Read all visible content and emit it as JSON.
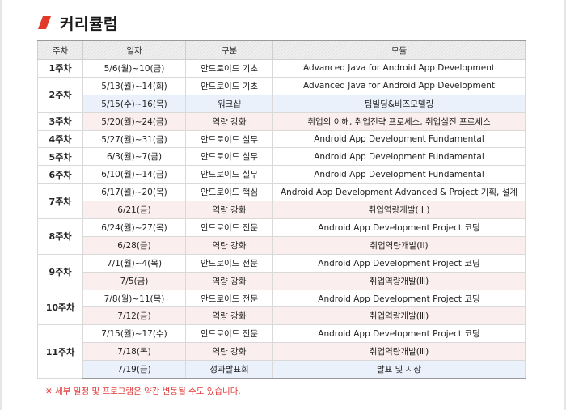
{
  "header": {
    "title": "커리큘럼",
    "accent_color": "#e23a2a"
  },
  "table": {
    "columns": [
      "주차",
      "일자",
      "구분",
      "모듈"
    ],
    "weeks": [
      {
        "week": "1주차",
        "rows": [
          {
            "date": "5/6(월)~10(금)",
            "category": "안드로이드 기초",
            "module": "Advanced Java for Android App Development",
            "tone": "basic"
          }
        ]
      },
      {
        "week": "2주차",
        "rows": [
          {
            "date": "5/13(월)~14(화)",
            "category": "안드로이드 기초",
            "module": "Advanced Java for Android App Development",
            "tone": "basic"
          },
          {
            "date": "5/15(수)~16(목)",
            "category": "워크샵",
            "module": "팀빌딩&비즈모델링",
            "tone": "work"
          }
        ]
      },
      {
        "week": "3주차",
        "rows": [
          {
            "date": "5/20(월)~24(금)",
            "category": "역량 강화",
            "module": "취업의 이해, 취업전략 프로세스, 취업실전 프로세스",
            "tone": "strength"
          }
        ]
      },
      {
        "week": "4주차",
        "rows": [
          {
            "date": "5/27(월)~31(금)",
            "category": "안드로이드 실무",
            "module": "Android App Development Fundamental",
            "tone": "basic"
          }
        ]
      },
      {
        "week": "5주차",
        "rows": [
          {
            "date": "6/3(월)~7(금)",
            "category": "안드로이드 실무",
            "module": "Android App Development Fundamental",
            "tone": "basic"
          }
        ]
      },
      {
        "week": "6주차",
        "rows": [
          {
            "date": "6/10(월)~14(금)",
            "category": "안드로이드 실무",
            "module": "Android App Development Fundamental",
            "tone": "basic"
          }
        ]
      },
      {
        "week": "7주차",
        "rows": [
          {
            "date": "6/17(월)~20(목)",
            "category": "안드로이드 핵심",
            "module": "Android App Development Advanced & Project 기획, 설계",
            "tone": "basic"
          },
          {
            "date": "6/21(금)",
            "category": "역량 강화",
            "module": "취업역량개발( I )",
            "tone": "strength"
          }
        ]
      },
      {
        "week": "8주차",
        "rows": [
          {
            "date": "6/24(월)~27(목)",
            "category": "안드로이드 전문",
            "module": "Android App Development Project 코딩",
            "tone": "basic"
          },
          {
            "date": "6/28(금)",
            "category": "역량 강화",
            "module": "취업역량개발(II)",
            "tone": "strength"
          }
        ]
      },
      {
        "week": "9주차",
        "rows": [
          {
            "date": "7/1(월)~4(목)",
            "category": "안드로이드 전문",
            "module": "Android App Development Project 코딩",
            "tone": "basic"
          },
          {
            "date": "7/5(금)",
            "category": "역량 강화",
            "module": "취업역량개발(Ⅲ)",
            "tone": "strength"
          }
        ]
      },
      {
        "week": "10주차",
        "rows": [
          {
            "date": "7/8(월)~11(목)",
            "category": "안드로이드 전문",
            "module": "Android App Development Project 코딩",
            "tone": "basic"
          },
          {
            "date": "7/12(금)",
            "category": "역량 강화",
            "module": "취업역량개발(Ⅲ)",
            "tone": "strength"
          }
        ]
      },
      {
        "week": "11주차",
        "rows": [
          {
            "date": "7/15(월)~17(수)",
            "category": "안드로이드 전문",
            "module": "Android App Development Project 코딩",
            "tone": "basic"
          },
          {
            "date": "7/18(목)",
            "category": "역량 강화",
            "module": "취업역량개발(Ⅲ)",
            "tone": "strength"
          },
          {
            "date": "7/19(금)",
            "category": "성과발표회",
            "module": "발표 및 시상",
            "tone": "work"
          }
        ]
      }
    ]
  },
  "note": "※ 세부 일정 및 프로그램은 약간 변동될 수도 있습니다."
}
